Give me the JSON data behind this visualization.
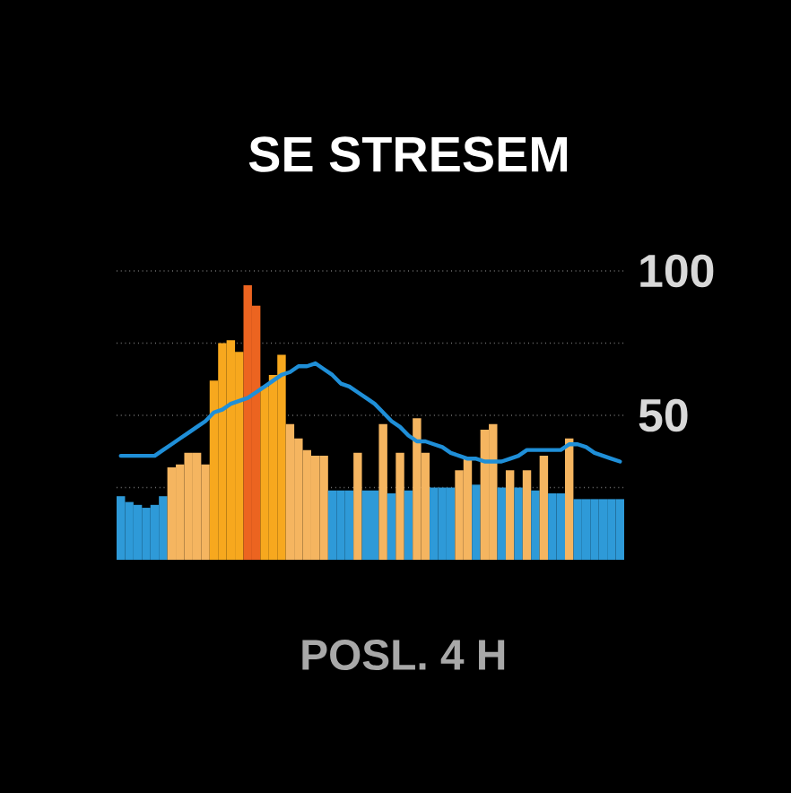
{
  "chart_data": {
    "type": "bar",
    "title": "SE STRESEM",
    "xlabel": "POSL. 4 H",
    "categories": [
      null,
      null,
      null,
      null,
      null,
      null,
      null,
      null,
      null,
      null,
      null,
      null,
      null,
      null,
      null,
      null,
      null,
      null,
      null,
      null,
      null,
      null,
      null,
      null,
      null,
      null,
      null,
      null,
      null,
      null,
      null,
      null,
      null,
      null,
      null,
      null,
      null,
      null,
      null,
      null,
      null,
      null,
      null,
      null,
      null,
      null,
      null,
      null,
      null,
      null,
      null,
      null,
      null,
      null,
      null,
      null,
      null,
      null,
      null,
      null
    ],
    "series": [
      {
        "values": [
          22,
          20,
          19,
          18,
          19,
          22,
          32,
          33,
          37,
          37,
          33,
          62,
          75,
          76,
          72,
          95,
          88,
          60,
          64,
          71,
          47,
          42,
          38,
          36,
          36,
          24,
          24,
          24,
          37,
          24,
          24,
          47,
          23,
          37,
          24,
          49,
          37,
          25,
          25,
          25,
          31,
          35,
          26,
          45,
          47,
          25,
          31,
          25,
          31,
          24,
          36,
          23,
          23,
          42,
          21,
          21,
          21,
          21,
          21,
          21
        ],
        "colors": [
          "#2e9ad8",
          "#2e9ad8",
          "#2e9ad8",
          "#2e9ad8",
          "#2e9ad8",
          "#2e9ad8",
          "#f5b560",
          "#f5b560",
          "#f5b560",
          "#f5b560",
          "#f5b560",
          "#f7a81e",
          "#f7a81e",
          "#f7a81e",
          "#f7a81e",
          "#ec6420",
          "#ec6420",
          "#f7a81e",
          "#f7a81e",
          "#f7a81e",
          "#f5b560",
          "#f5b560",
          "#f5b560",
          "#f5b560",
          "#f5b560",
          "#2e9ad8",
          "#2e9ad8",
          "#2e9ad8",
          "#f5b560",
          "#2e9ad8",
          "#2e9ad8",
          "#f5b560",
          "#2e9ad8",
          "#f5b560",
          "#2e9ad8",
          "#f5b560",
          "#f5b560",
          "#2e9ad8",
          "#2e9ad8",
          "#2e9ad8",
          "#f5b560",
          "#f5b560",
          "#2e9ad8",
          "#f5b560",
          "#f5b560",
          "#2e9ad8",
          "#f5b560",
          "#2e9ad8",
          "#f5b560",
          "#2e9ad8",
          "#f5b560",
          "#2e9ad8",
          "#2e9ad8",
          "#f5b560",
          "#2e9ad8",
          "#2e9ad8",
          "#2e9ad8",
          "#2e9ad8",
          "#2e9ad8",
          "#2e9ad8"
        ]
      },
      {
        "type": "line",
        "color": "#1f8fd8",
        "values": [
          36,
          36,
          36,
          36,
          36,
          38,
          40,
          42,
          44,
          46,
          48,
          51,
          52,
          54,
          55,
          56,
          58,
          60,
          62,
          64,
          65,
          67,
          67,
          68,
          66,
          64,
          61,
          60,
          58,
          56,
          54,
          51,
          48,
          46,
          43,
          41,
          41,
          40,
          39,
          37,
          36,
          35,
          35,
          34,
          34,
          34,
          35,
          36,
          38,
          38,
          38,
          38,
          38,
          40,
          40,
          39,
          37,
          36,
          35,
          34
        ]
      }
    ],
    "ylim": [
      0,
      100
    ],
    "yticks": [
      {
        "value": 25,
        "label": null
      },
      50,
      {
        "value": 75,
        "label": null
      },
      100
    ],
    "grid": "y",
    "tick_labels": "y"
  }
}
